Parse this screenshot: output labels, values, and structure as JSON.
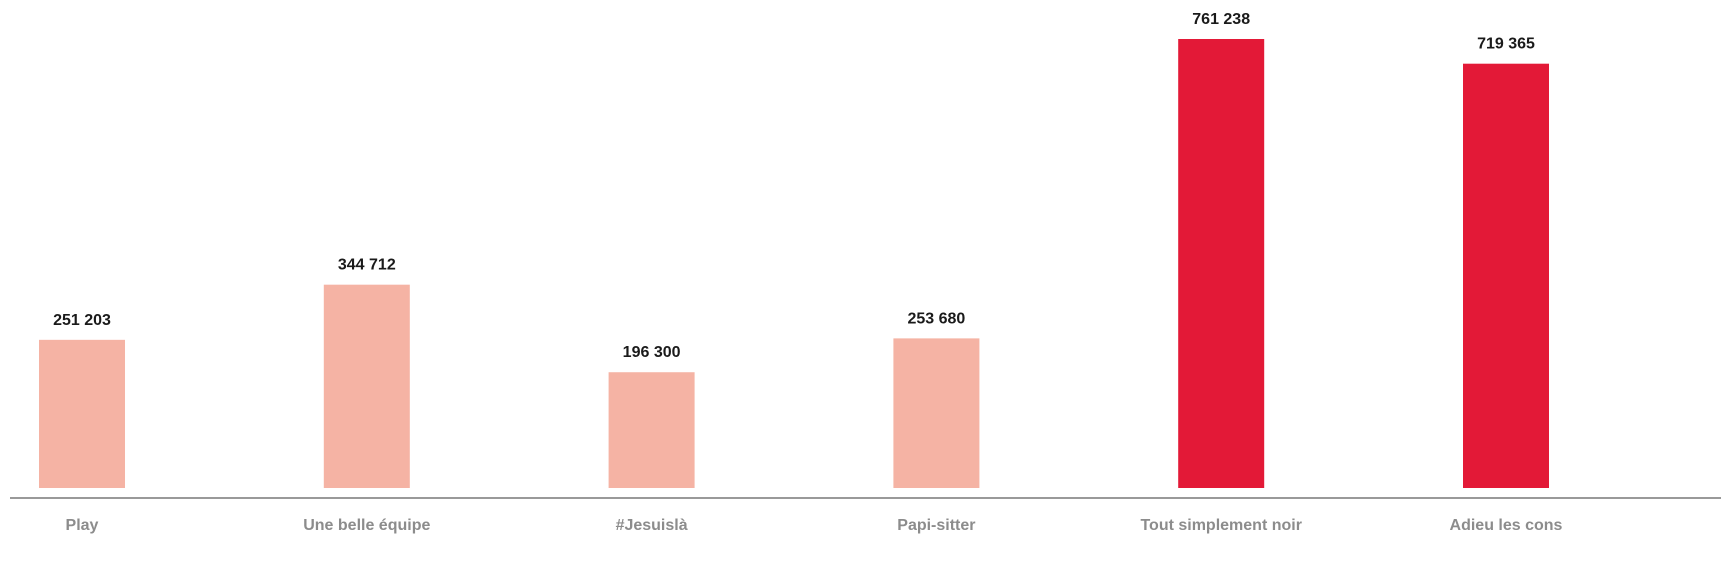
{
  "chart_data": {
    "type": "bar",
    "categories": [
      "Play",
      "Une belle équipe",
      "#Jesuislà",
      "Papi-sitter",
      "Tout simplement noir",
      "Adieu les cons"
    ],
    "values": [
      251203,
      344712,
      196300,
      253680,
      761238,
      719365
    ],
    "value_labels": [
      "251 203",
      "344 712",
      "196 300",
      "253 680",
      "761 238",
      "719 365"
    ],
    "bar_colors": [
      "#f5b3a4",
      "#f5b3a4",
      "#f5b3a4",
      "#f5b3a4",
      "#e31937",
      "#e31937"
    ],
    "ylim": [
      0,
      761238
    ],
    "grid": false,
    "title": "",
    "xlabel": "",
    "ylabel": ""
  },
  "colors": {
    "axis_line": "#999999",
    "value_text": "#1a1a1a",
    "category_text": "#8c8c8c"
  }
}
